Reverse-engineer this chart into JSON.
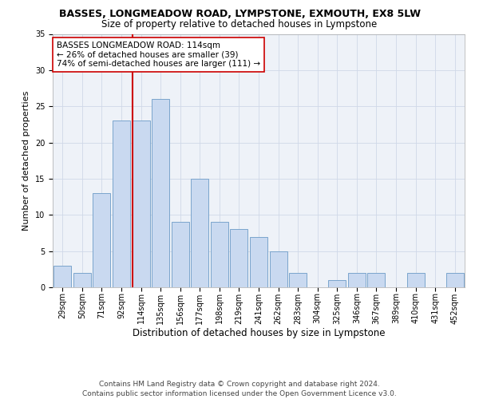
{
  "title": "BASSES, LONGMEADOW ROAD, LYMPSTONE, EXMOUTH, EX8 5LW",
  "subtitle": "Size of property relative to detached houses in Lympstone",
  "xlabel": "Distribution of detached houses by size in Lympstone",
  "ylabel": "Number of detached properties",
  "categories": [
    "29sqm",
    "50sqm",
    "71sqm",
    "92sqm",
    "114sqm",
    "135sqm",
    "156sqm",
    "177sqm",
    "198sqm",
    "219sqm",
    "241sqm",
    "262sqm",
    "283sqm",
    "304sqm",
    "325sqm",
    "346sqm",
    "367sqm",
    "389sqm",
    "410sqm",
    "431sqm",
    "452sqm"
  ],
  "values": [
    3,
    2,
    13,
    23,
    23,
    26,
    9,
    15,
    9,
    8,
    7,
    5,
    2,
    0,
    1,
    2,
    2,
    0,
    2,
    0,
    2
  ],
  "bar_color": "#c9d9f0",
  "bar_edgecolor": "#7aa4cc",
  "vline_index": 4,
  "vline_color": "#cc0000",
  "annotation_text": "BASSES LONGMEADOW ROAD: 114sqm\n← 26% of detached houses are smaller (39)\n74% of semi-detached houses are larger (111) →",
  "annotation_box_color": "#ffffff",
  "annotation_box_edgecolor": "#cc0000",
  "ylim": [
    0,
    35
  ],
  "yticks": [
    0,
    5,
    10,
    15,
    20,
    25,
    30,
    35
  ],
  "grid_color": "#d0d8e8",
  "background_color": "#eef2f8",
  "footer": "Contains HM Land Registry data © Crown copyright and database right 2024.\nContains public sector information licensed under the Open Government Licence v3.0.",
  "title_fontsize": 9,
  "subtitle_fontsize": 8.5,
  "ylabel_fontsize": 8,
  "xlabel_fontsize": 8.5,
  "tick_fontsize": 7,
  "annotation_fontsize": 7.5,
  "footer_fontsize": 6.5
}
